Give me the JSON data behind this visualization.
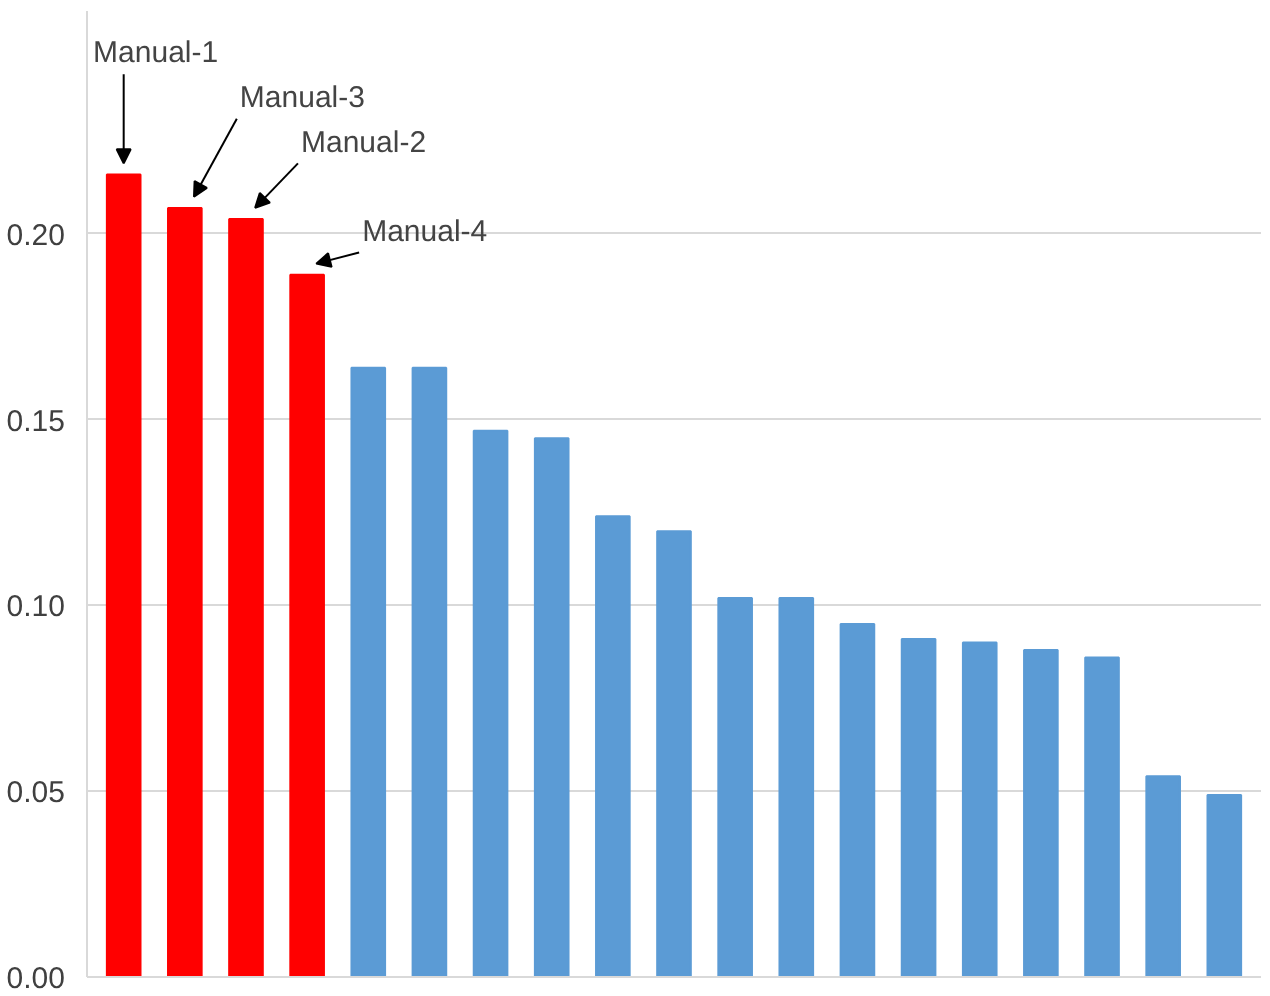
{
  "chart_data": {
    "type": "bar",
    "categories": [
      null,
      null,
      null,
      null,
      null,
      null,
      null,
      null,
      null,
      null,
      null,
      null,
      null,
      null,
      null,
      null,
      null,
      null,
      null
    ],
    "values": [
      0.216,
      0.207,
      0.204,
      0.189,
      0.164,
      0.164,
      0.147,
      0.145,
      0.124,
      0.12,
      0.102,
      0.102,
      0.095,
      0.091,
      0.09,
      0.088,
      0.086,
      0.054,
      0.049
    ],
    "colors": [
      "#ff0000",
      "#ff0000",
      "#ff0000",
      "#ff0000",
      "#5b9bd5",
      "#5b9bd5",
      "#5b9bd5",
      "#5b9bd5",
      "#5b9bd5",
      "#5b9bd5",
      "#5b9bd5",
      "#5b9bd5",
      "#5b9bd5",
      "#5b9bd5",
      "#5b9bd5",
      "#5b9bd5",
      "#5b9bd5",
      "#5b9bd5",
      "#5b9bd5"
    ],
    "annotations": [
      "Manual-1",
      "Manual-3",
      "Manual-2",
      "Manual-4"
    ],
    "ylim": [
      0,
      0.26
    ],
    "yticks": [
      {
        "value": 0,
        "label": "0.00"
      },
      {
        "value": 0.05,
        "label": "0.05"
      },
      {
        "value": 0.1,
        "label": "0.10"
      },
      {
        "value": 0.15,
        "label": "0.15"
      },
      {
        "value": 0.2,
        "label": "0.20"
      }
    ],
    "grid": "y"
  }
}
